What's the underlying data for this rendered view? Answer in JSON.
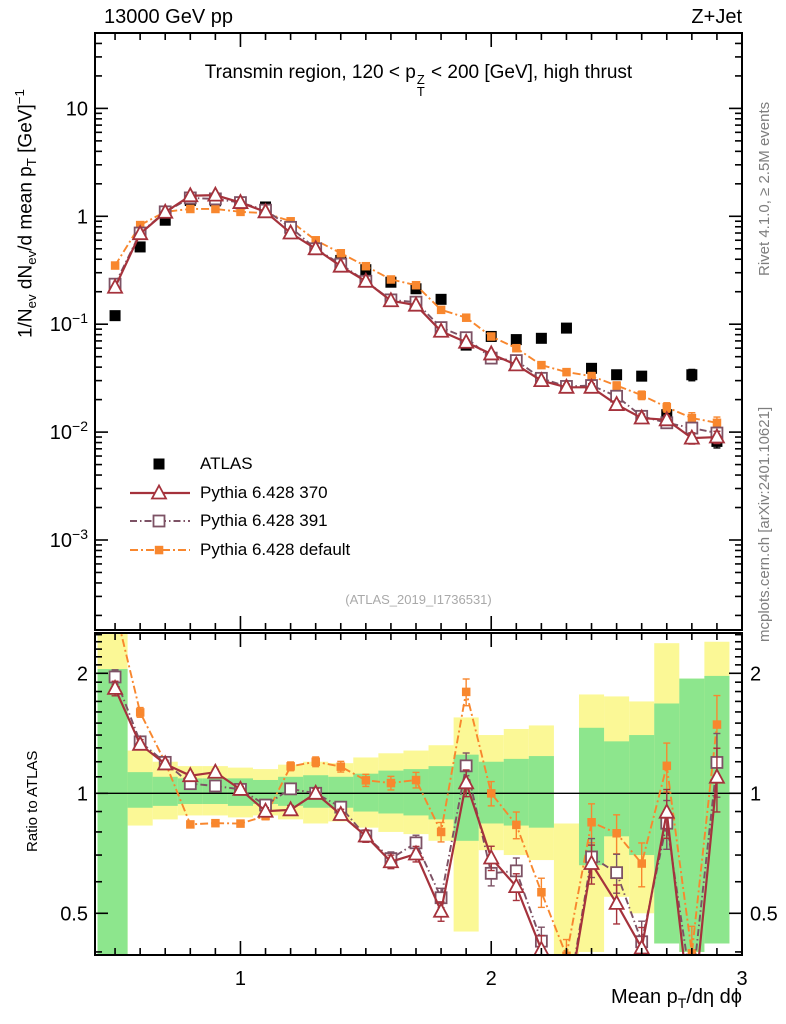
{
  "header": {
    "left": "13000 GeV pp",
    "right": "Z+Jet"
  },
  "side_notes": {
    "right_top": "Rivet 4.1.0, ≥ 2.5M events",
    "right_bottom": "mcplots.cern.ch [arXiv:2401.10621]"
  },
  "watermark": "(ATLAS_2019_I1736531)",
  "title_segments": [
    {
      "t": "Transmin region, 120 < p"
    },
    {
      "over": "Z",
      "under": "T"
    },
    {
      "t": " < 200 [GeV], high thrust"
    }
  ],
  "axes": {
    "ylabel_ratio": "Ratio to ATLAS",
    "ylabel_main_segments": [
      {
        "t": "1/N"
      },
      {
        "t": "ev",
        "pos": "sub"
      },
      {
        "t": " dN"
      },
      {
        "t": "ev",
        "pos": "sub"
      },
      {
        "t": "/d mean p"
      },
      {
        "t": "T",
        "pos": "sub"
      },
      {
        "t": " [GeV]"
      },
      {
        "t": "−1",
        "pos": "sup"
      }
    ],
    "xlabel_segments": [
      {
        "t": "Mean p"
      },
      {
        "t": "T",
        "pos": "sub"
      },
      {
        "t": "/dη dϕ"
      }
    ],
    "x_tick_labels": [
      {
        "v": 1,
        "label": "1"
      },
      {
        "v": 2,
        "label": "2"
      },
      {
        "v": 3,
        "label": "3"
      }
    ],
    "y_main_tick_labels": [
      {
        "v": 10,
        "label": "10"
      },
      {
        "v": 1,
        "label": "1"
      },
      {
        "v": 0.1,
        "label": "10",
        "exp": "−1"
      },
      {
        "v": 0.01,
        "label": "10",
        "exp": "−2"
      },
      {
        "v": 0.001,
        "label": "10",
        "exp": "−3"
      }
    ],
    "y_ratio_tick_labels": [
      {
        "v": 2,
        "label": "2"
      },
      {
        "v": 1,
        "label": "1"
      },
      {
        "v": 0.5,
        "label": "0.5"
      }
    ]
  },
  "chart_data": {
    "type": "line",
    "title": "Transmin region, 120 < pT^Z < 200 [GeV], high thrust",
    "xlabel": "Mean pT/dη dϕ",
    "ylabel": "1/Nev dNev/d mean pT [GeV]^-1",
    "ratio_label": "Ratio to ATLAS",
    "x_range": [
      0.42,
      3.0
    ],
    "y_scale": "log",
    "y_range_main": [
      0.000146,
      50
    ],
    "ratio_scale": "log",
    "y_range_ratio": [
      0.393,
      2.52
    ],
    "grid": false,
    "legend_position": "inside-left",
    "x": [
      0.5,
      0.6,
      0.7,
      0.8,
      0.9,
      1.0,
      1.1,
      1.2,
      1.3,
      1.4,
      1.5,
      1.6,
      1.7,
      1.8,
      1.9,
      2.0,
      2.1,
      2.2,
      2.3,
      2.4,
      2.5,
      2.6,
      2.7,
      2.8,
      2.9
    ],
    "series": [
      {
        "name": "ATLAS",
        "color": "#000000",
        "marker": "square_filled",
        "line": "none",
        "values": [
          0.12,
          0.52,
          0.92,
          1.4,
          1.39,
          1.31,
          1.22,
          0.77,
          0.5,
          0.39,
          0.32,
          0.245,
          0.213,
          0.17,
          0.064,
          0.077,
          0.072,
          0.074,
          0.092,
          0.039,
          0.034,
          0.033,
          0.0145,
          0.034,
          0.0082
        ]
      },
      {
        "name": "Pythia 6.428 370",
        "color": "#a5323c",
        "marker": "triangle_open",
        "line": "solid",
        "values": [
          0.22,
          0.69,
          1.09,
          1.55,
          1.57,
          1.34,
          1.1,
          0.7,
          0.5,
          0.345,
          0.25,
          0.165,
          0.15,
          0.086,
          0.068,
          0.053,
          0.042,
          0.03,
          0.026,
          0.026,
          0.018,
          0.0135,
          0.013,
          0.0088,
          0.009
        ]
      },
      {
        "name": "Pythia 6.428 391",
        "color": "#7d5265",
        "marker": "square_open",
        "line": "dash_dot_dot",
        "values": [
          0.235,
          0.7,
          1.1,
          1.48,
          1.45,
          1.34,
          1.14,
          0.79,
          0.5,
          0.36,
          0.25,
          0.168,
          0.16,
          0.093,
          0.075,
          0.0485,
          0.046,
          0.0315,
          0.0265,
          0.027,
          0.0215,
          0.014,
          0.0122,
          0.0109,
          0.0098
        ]
      },
      {
        "name": "Pythia 6.428 default",
        "color": "#f8872e",
        "marker": "square_filled_small",
        "line": "dash_dot",
        "values": [
          0.35,
          0.83,
          1.1,
          1.17,
          1.17,
          1.1,
          1.07,
          0.9,
          0.6,
          0.455,
          0.345,
          0.26,
          0.23,
          0.136,
          0.115,
          0.077,
          0.06,
          0.0418,
          0.036,
          0.033,
          0.027,
          0.022,
          0.017,
          0.0135,
          0.0122
        ]
      }
    ],
    "rel_err": [
      0.03,
      0.02,
      0.015,
      0.012,
      0.012,
      0.012,
      0.015,
      0.018,
      0.02,
      0.022,
      0.025,
      0.028,
      0.032,
      0.04,
      0.055,
      0.05,
      0.055,
      0.06,
      0.07,
      0.08,
      0.08,
      0.09,
      0.1,
      0.12,
      0.13
    ],
    "uncertainty_bands": {
      "yellow_color": "#fbf896",
      "green_color": "#8de68d",
      "band_halfwidth": 0.05,
      "yellow": [
        [
          0.28,
          2.55
        ],
        [
          0.83,
          1.28
        ],
        [
          0.86,
          1.2
        ],
        [
          0.88,
          1.17
        ],
        [
          0.88,
          1.17
        ],
        [
          0.87,
          1.16
        ],
        [
          0.88,
          1.15
        ],
        [
          0.86,
          1.18
        ],
        [
          0.84,
          1.2
        ],
        [
          0.85,
          1.19
        ],
        [
          0.82,
          1.23
        ],
        [
          0.8,
          1.26
        ],
        [
          0.79,
          1.28
        ],
        [
          0.76,
          1.32
        ],
        [
          0.45,
          1.55
        ],
        [
          0.72,
          1.4
        ],
        [
          0.7,
          1.45
        ],
        [
          0.68,
          1.48
        ],
        [
          0.38,
          0.84
        ],
        [
          0.4,
          1.77
        ],
        [
          0.55,
          1.75
        ],
        [
          0.5,
          1.7
        ],
        [
          0.42,
          2.38
        ],
        [
          0.4,
          1.94
        ],
        [
          0.42,
          2.4
        ]
      ],
      "green": [
        [
          0.28,
          2.05
        ],
        [
          0.92,
          1.13
        ],
        [
          0.93,
          1.1
        ],
        [
          0.94,
          1.09
        ],
        [
          0.94,
          1.09
        ],
        [
          0.93,
          1.09
        ],
        [
          0.94,
          1.08
        ],
        [
          0.93,
          1.1
        ],
        [
          0.92,
          1.11
        ],
        [
          0.92,
          1.1
        ],
        [
          0.9,
          1.12
        ],
        [
          0.89,
          1.14
        ],
        [
          0.88,
          1.15
        ],
        [
          0.86,
          1.17
        ],
        [
          0.76,
          1.25
        ],
        [
          0.84,
          1.2
        ],
        [
          0.83,
          1.22
        ],
        [
          0.82,
          1.24
        ],
        null,
        [
          0.66,
          1.46
        ],
        [
          0.78,
          1.35
        ],
        [
          0.7,
          1.4
        ],
        [
          0.42,
          1.68
        ],
        [
          0.4,
          1.94
        ],
        [
          0.42,
          1.97
        ]
      ]
    }
  }
}
